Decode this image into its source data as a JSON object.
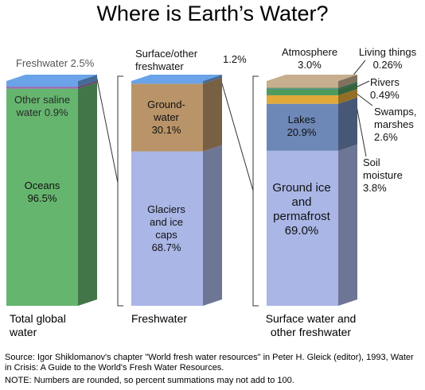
{
  "chart_data": {
    "type": "stacked-bar-3d",
    "title": "Where is Earth’s Water?",
    "source": "Source: Igor Shiklomanov's chapter \"World fresh water resources\" in Peter H. Gleick (editor), 1993, Water in Crisis: A Guide to the World's Fresh Water Resources.",
    "note": "NOTE: Numbers are rounded, so percent summations may not add to 100.",
    "bars": [
      {
        "label": "Total global water",
        "segments": [
          "Oceans",
          "Other saline water",
          "Freshwater"
        ],
        "values": [
          96.5,
          0.9,
          2.5
        ],
        "value_labels": [
          "96.5%",
          "0.9%",
          "2.5%"
        ],
        "colors": [
          "#66b56f",
          "#9b6bb0",
          "#6aa3e8"
        ]
      },
      {
        "label": "Freshwater",
        "segments": [
          "Glaciers and ice caps",
          "Ground-water",
          "Surface/other freshwater"
        ],
        "values": [
          68.7,
          30.1,
          1.2
        ],
        "value_labels": [
          "68.7%",
          "30.1%",
          "1.2%"
        ],
        "colors": [
          "#a9b6e6",
          "#b89468",
          "#6aa3e8"
        ]
      },
      {
        "label": "Surface water and other freshwater",
        "segments": [
          "Ground ice and permafrost",
          "Lakes",
          "Soil moisture",
          "Swamps, marshes",
          "Rivers",
          "Living things",
          "Atmosphere"
        ],
        "values": [
          69.0,
          20.9,
          3.8,
          2.6,
          0.49,
          0.26,
          3.0
        ],
        "value_labels": [
          "69.0%",
          "20.9%",
          "3.8%",
          "2.6%",
          "0.49%",
          "0.26%",
          "3.0%"
        ],
        "colors": [
          "#a9b6e6",
          "#6d88b7",
          "#e0a93a",
          "#4e9a5c",
          "#3b8a7a",
          "#6f9450",
          "#c6ae8e"
        ]
      }
    ]
  }
}
